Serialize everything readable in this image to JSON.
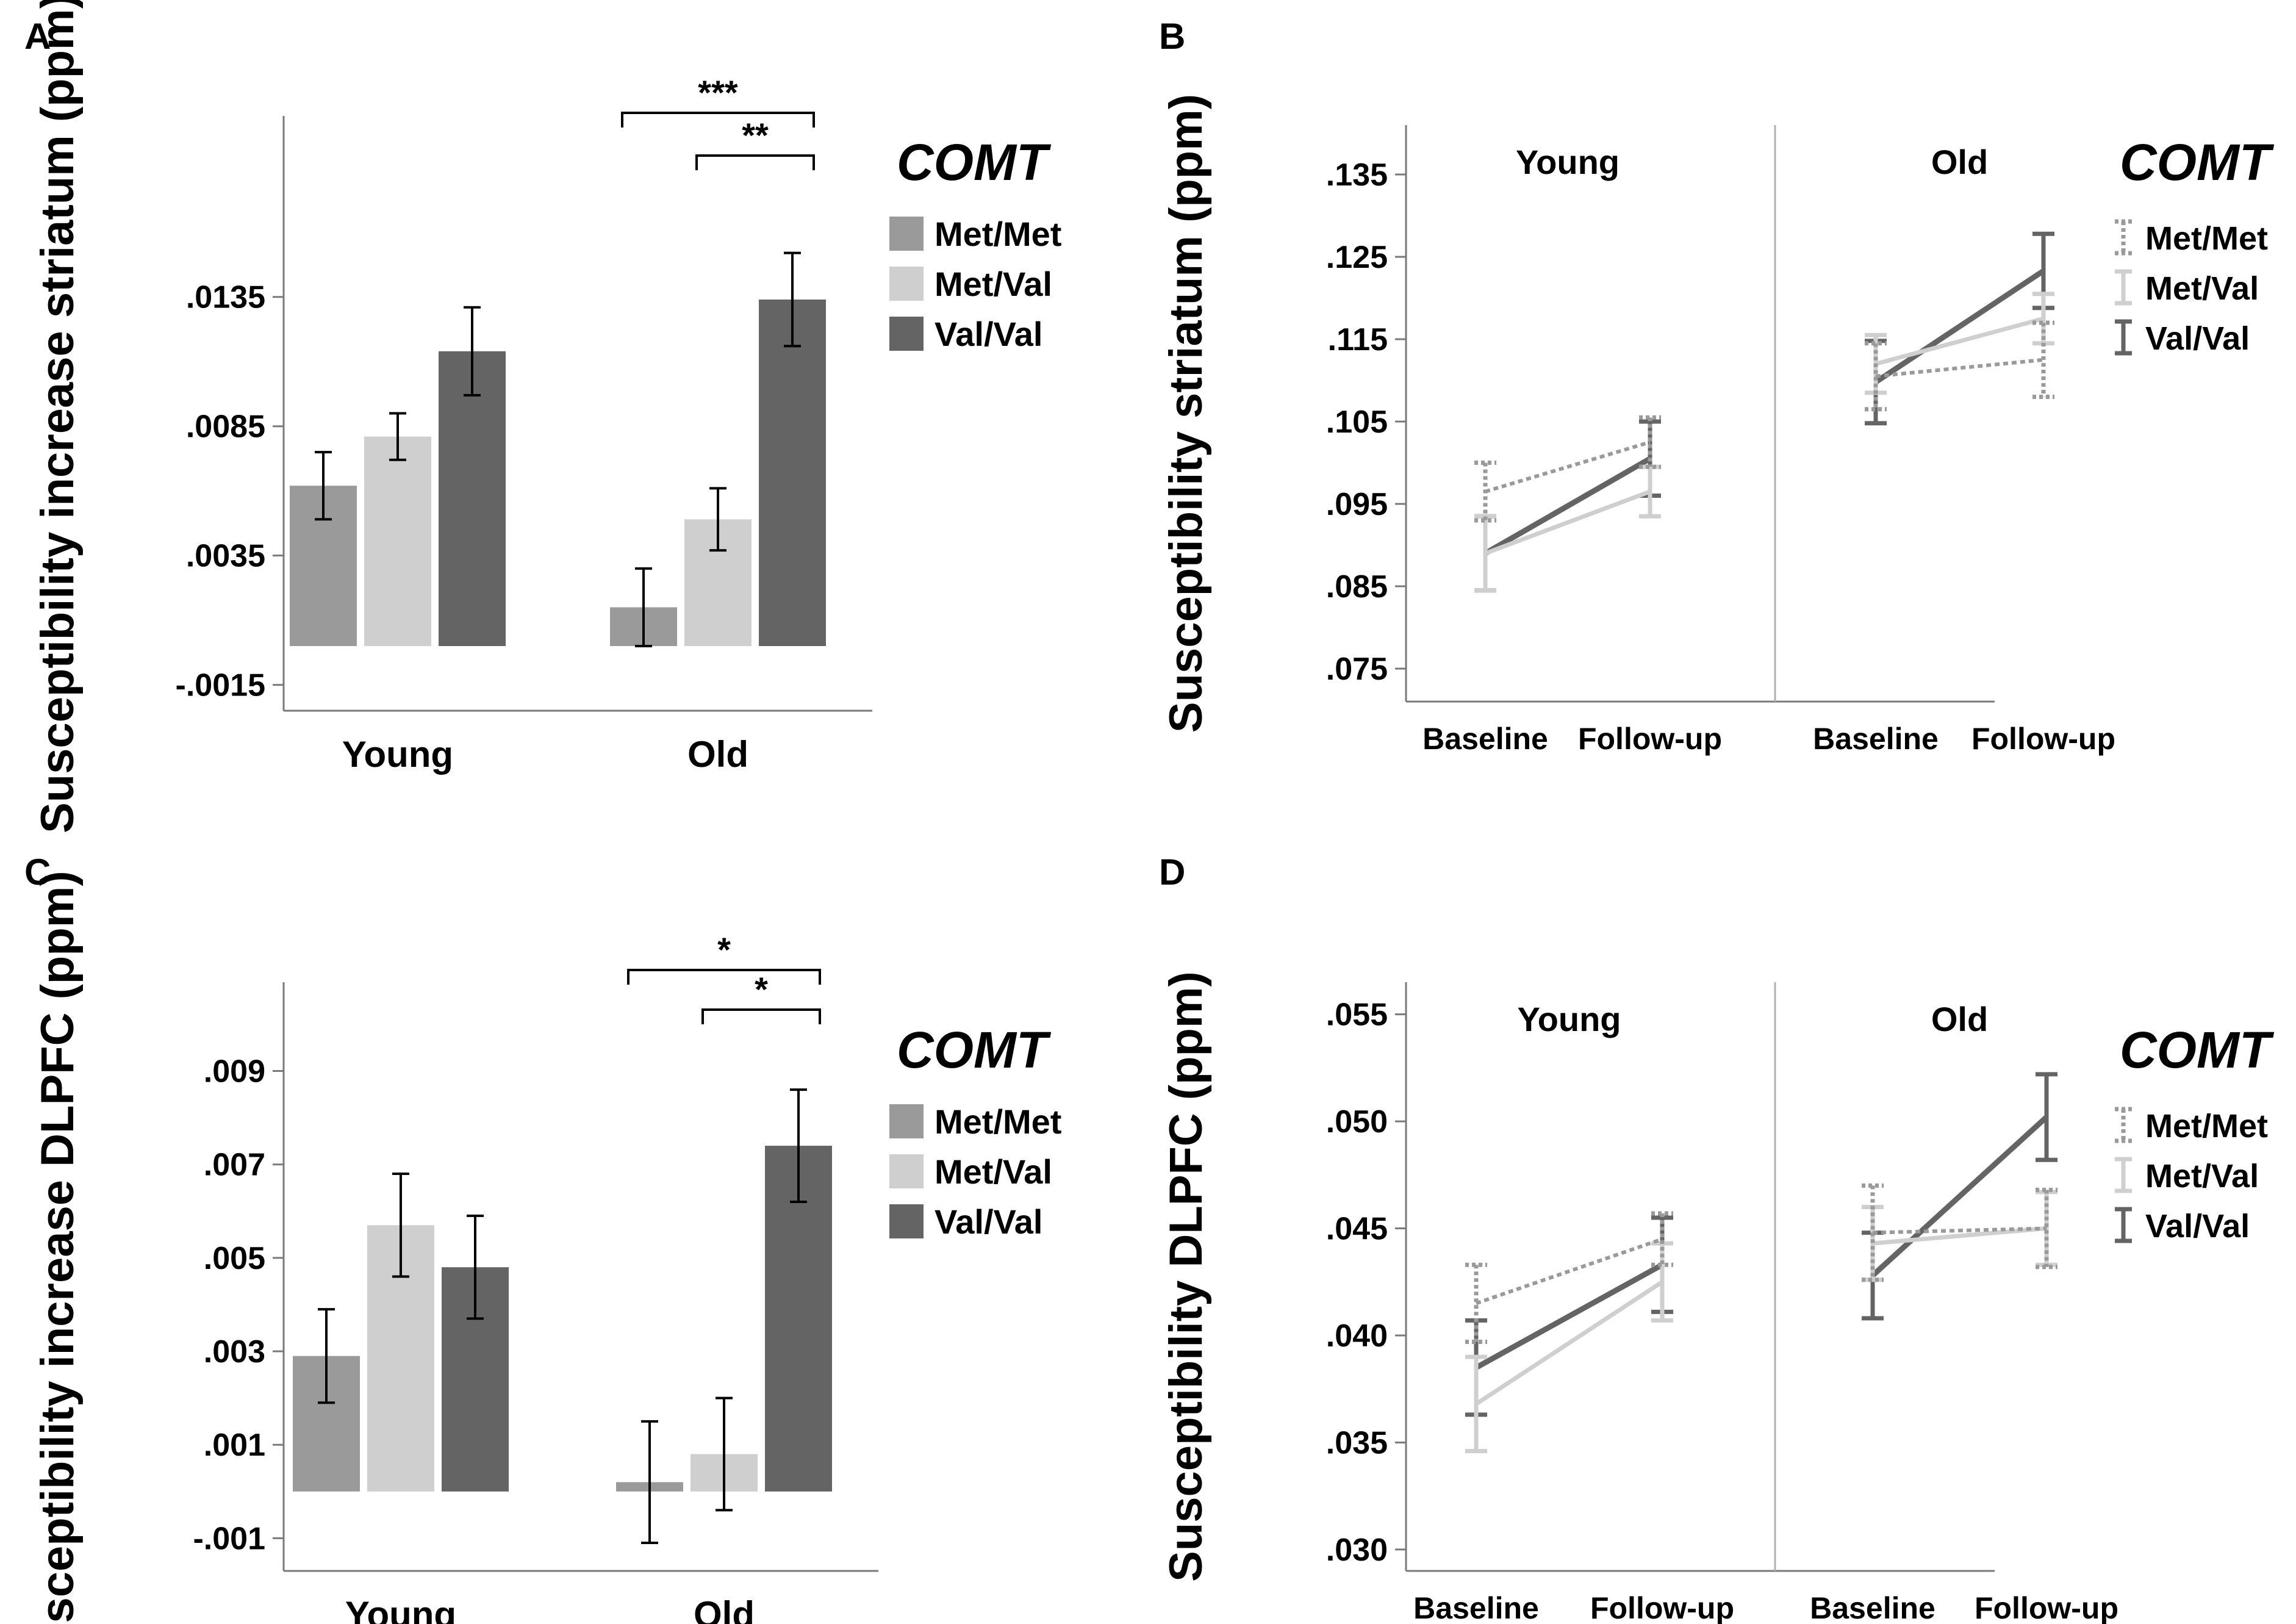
{
  "colors": {
    "met_met": "#9a9a9a",
    "met_val": "#cfcfcf",
    "val_val": "#646464",
    "axis": "#7a7a7a",
    "ink": "#000000"
  },
  "legend": {
    "title": "COMT",
    "items": [
      "Met/Met",
      "Met/Val",
      "Val/Val"
    ]
  },
  "chart_data": [
    {
      "panel": "A",
      "type": "bar",
      "ylabel": "Susceptibility increase striatum (ppm)",
      "categories": [
        "Young",
        "Old"
      ],
      "yticks": [
        ".0135",
        ".0085",
        ".0035",
        "-.0015"
      ],
      "ylim": [
        -0.0025,
        0.0205
      ],
      "baseline": 0.0,
      "series": [
        {
          "name": "Met/Met",
          "values": [
            0.0062,
            0.0015
          ],
          "err": [
            0.0013,
            0.0015
          ]
        },
        {
          "name": "Met/Val",
          "values": [
            0.0081,
            0.0049
          ],
          "err": [
            0.0009,
            0.0012
          ]
        },
        {
          "name": "Val/Val",
          "values": [
            0.0114,
            0.0134
          ],
          "err": [
            0.0017,
            0.0018
          ]
        }
      ],
      "significance": [
        {
          "group": "Old",
          "from": "Met/Met",
          "to": "Val/Val",
          "label": "***"
        },
        {
          "group": "Old",
          "from": "Met/Val",
          "to": "Val/Val",
          "label": "**"
        }
      ]
    },
    {
      "panel": "B",
      "type": "line",
      "ylabel": "Susceptibility striatum (ppm)",
      "ylim": [
        0.071,
        0.141
      ],
      "yticks": [
        ".135",
        ".125",
        ".115",
        ".105",
        ".095",
        ".085",
        ".075"
      ],
      "groups": [
        {
          "name": "Young",
          "x": [
            "Baseline",
            "Follow-up"
          ],
          "series": [
            {
              "name": "Met/Met",
              "values": [
                0.0965,
                0.1025
              ],
              "err": [
                0.0035,
                0.003
              ]
            },
            {
              "name": "Met/Val",
              "values": [
                0.089,
                0.0965
              ],
              "err": [
                0.0045,
                0.003
              ]
            },
            {
              "name": "Val/Val",
              "values": [
                0.089,
                0.1005
              ],
              "err": [
                0.0045,
                0.0045
              ]
            }
          ]
        },
        {
          "name": "Old",
          "x": [
            "Baseline",
            "Follow-up"
          ],
          "series": [
            {
              "name": "Met/Met",
              "values": [
                0.1105,
                0.1125
              ],
              "err": [
                0.004,
                0.0045
              ]
            },
            {
              "name": "Met/Val",
              "values": [
                0.112,
                0.1175
              ],
              "err": [
                0.0035,
                0.003
              ]
            },
            {
              "name": "Val/Val",
              "values": [
                0.1098,
                0.1233
              ],
              "err": [
                0.005,
                0.0045
              ]
            }
          ]
        }
      ]
    },
    {
      "panel": "C",
      "type": "bar",
      "ylabel": "Susceptibility increase DLPFC (ppm)",
      "categories": [
        "Young",
        "Old"
      ],
      "yticks": [
        ".009",
        ".007",
        ".005",
        ".003",
        ".001",
        "-.001"
      ],
      "ylim": [
        -0.0017,
        0.0109
      ],
      "baseline": 0.0,
      "series": [
        {
          "name": "Met/Met",
          "values": [
            0.0029,
            0.0002
          ],
          "err": [
            0.001,
            0.0013
          ]
        },
        {
          "name": "Met/Val",
          "values": [
            0.0057,
            0.0008
          ],
          "err": [
            0.0011,
            0.0012
          ]
        },
        {
          "name": "Val/Val",
          "values": [
            0.0048,
            0.0074
          ],
          "err": [
            0.0011,
            0.0012
          ]
        }
      ],
      "significance": [
        {
          "group": "Old",
          "from": "Met/Met",
          "to": "Val/Val",
          "label": "*"
        },
        {
          "group": "Old",
          "from": "Met/Val",
          "to": "Val/Val",
          "label": "*"
        }
      ]
    },
    {
      "panel": "D",
      "type": "line",
      "ylabel": "Susceptibility DLPFC (ppm)",
      "ylim": [
        0.029,
        0.0565
      ],
      "yticks": [
        ".055",
        ".050",
        ".045",
        ".040",
        ".035",
        ".030"
      ],
      "groups": [
        {
          "name": "Young",
          "x": [
            "Baseline",
            "Follow-up"
          ],
          "series": [
            {
              "name": "Met/Met",
              "values": [
                0.0415,
                0.0445
              ],
              "err": [
                0.0018,
                0.0012
              ]
            },
            {
              "name": "Met/Val",
              "values": [
                0.0368,
                0.0425
              ],
              "err": [
                0.0022,
                0.0018
              ]
            },
            {
              "name": "Val/Val",
              "values": [
                0.0385,
                0.0433
              ],
              "err": [
                0.0022,
                0.0022
              ]
            }
          ]
        },
        {
          "name": "Old",
          "x": [
            "Baseline",
            "Follow-up"
          ],
          "series": [
            {
              "name": "Met/Met",
              "values": [
                0.0448,
                0.045
              ],
              "err": [
                0.0022,
                0.0018
              ]
            },
            {
              "name": "Met/Val",
              "values": [
                0.0443,
                0.045
              ],
              "err": [
                0.0017,
                0.0017
              ]
            },
            {
              "name": "Val/Val",
              "values": [
                0.0428,
                0.0502
              ],
              "err": [
                0.002,
                0.002
              ]
            }
          ]
        }
      ]
    }
  ]
}
